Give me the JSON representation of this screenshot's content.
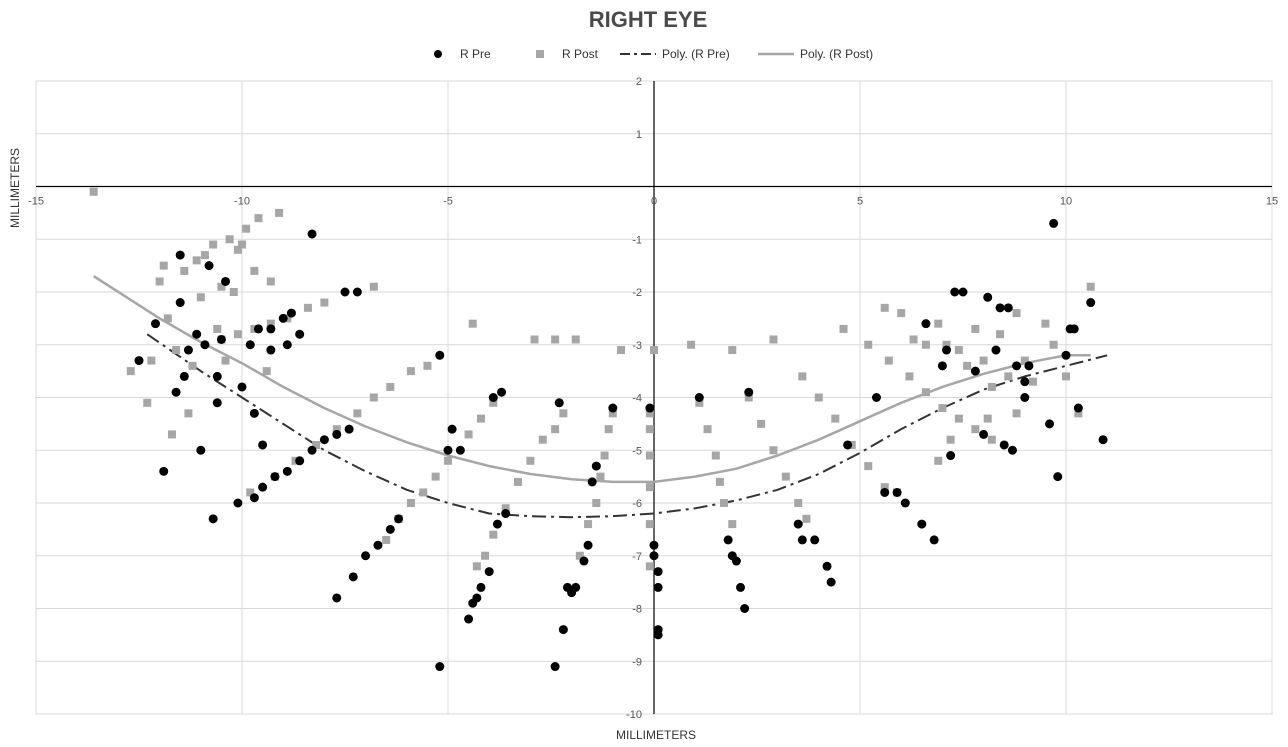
{
  "chart_data": {
    "type": "scatter",
    "title": "RIGHT EYE",
    "xlabel": "MILLIMETERS",
    "ylabel": "MILLIMETERS",
    "xlim": [
      -15,
      15
    ],
    "ylim": [
      -10,
      2
    ],
    "x_ticks": [
      -15,
      -10,
      -5,
      0,
      5,
      10,
      15
    ],
    "y_ticks": [
      2,
      1,
      -1,
      -2,
      -3,
      -4,
      -5,
      -6,
      -7,
      -8,
      -9,
      -10
    ],
    "grid": true,
    "legend_position": "top",
    "legend": [
      "R Pre",
      "R Post",
      "Poly. (R Pre)",
      "Poly. (R Post)"
    ],
    "colors": {
      "pre": "#000000",
      "post": "#a6a6a6",
      "poly_pre": "#333333",
      "poly_post": "#a6a6a6",
      "grid": "#d9d9d9",
      "axis": "#000000"
    },
    "series": [
      {
        "name": "R Pre",
        "marker": "circle",
        "points": [
          [
            -12.5,
            -3.3
          ],
          [
            -12.1,
            -2.6
          ],
          [
            -11.9,
            -5.4
          ],
          [
            -11.6,
            -3.9
          ],
          [
            -11.5,
            -2.2
          ],
          [
            -11.5,
            -1.3
          ],
          [
            -11.4,
            -3.6
          ],
          [
            -11.3,
            -3.1
          ],
          [
            -11.1,
            -2.8
          ],
          [
            -11.0,
            -5.0
          ],
          [
            -10.9,
            -3.0
          ],
          [
            -10.8,
            -1.5
          ],
          [
            -10.7,
            -6.3
          ],
          [
            -10.6,
            -4.1
          ],
          [
            -10.6,
            -3.6
          ],
          [
            -10.5,
            -2.9
          ],
          [
            -10.4,
            -1.8
          ],
          [
            -10.1,
            -6.0
          ],
          [
            -10.0,
            -3.8
          ],
          [
            -9.7,
            -4.3
          ],
          [
            -9.8,
            -3.0
          ],
          [
            -9.6,
            -2.7
          ],
          [
            -9.5,
            -4.9
          ],
          [
            -9.3,
            -3.1
          ],
          [
            -9.3,
            -2.7
          ],
          [
            -9.0,
            -2.5
          ],
          [
            -8.9,
            -3.0
          ],
          [
            -8.8,
            -2.4
          ],
          [
            -8.6,
            -2.8
          ],
          [
            -8.3,
            -0.9
          ],
          [
            -7.5,
            -2.0
          ],
          [
            -7.2,
            -2.0
          ],
          [
            -9.7,
            -5.9
          ],
          [
            -9.5,
            -5.7
          ],
          [
            -9.2,
            -5.5
          ],
          [
            -8.9,
            -5.4
          ],
          [
            -8.6,
            -5.2
          ],
          [
            -8.3,
            -5.0
          ],
          [
            -8.0,
            -4.8
          ],
          [
            -7.7,
            -4.7
          ],
          [
            -7.4,
            -4.6
          ],
          [
            -7.7,
            -7.8
          ],
          [
            -7.3,
            -7.4
          ],
          [
            -7.0,
            -7.0
          ],
          [
            -6.7,
            -6.8
          ],
          [
            -6.4,
            -6.5
          ],
          [
            -6.2,
            -6.3
          ],
          [
            -5.2,
            -3.2
          ],
          [
            -5.2,
            -9.1
          ],
          [
            -4.7,
            -5.0
          ],
          [
            -4.9,
            -4.6
          ],
          [
            -5.0,
            -5.0
          ],
          [
            -4.5,
            -8.2
          ],
          [
            -4.4,
            -7.9
          ],
          [
            -4.3,
            -7.8
          ],
          [
            -4.2,
            -7.6
          ],
          [
            -4.0,
            -7.3
          ],
          [
            -3.9,
            -4.0
          ],
          [
            -3.7,
            -3.9
          ],
          [
            -3.8,
            -6.4
          ],
          [
            -3.6,
            -6.2
          ],
          [
            -2.4,
            -9.1
          ],
          [
            -2.2,
            -8.4
          ],
          [
            -2.1,
            -7.6
          ],
          [
            -2.0,
            -7.7
          ],
          [
            -1.9,
            -7.6
          ],
          [
            -2.3,
            -4.1
          ],
          [
            -1.7,
            -7.1
          ],
          [
            -1.6,
            -6.8
          ],
          [
            -1.5,
            -5.6
          ],
          [
            -1.4,
            -5.3
          ],
          [
            -1.0,
            -4.2
          ],
          [
            -0.1,
            -4.2
          ],
          [
            0.0,
            -6.8
          ],
          [
            0.0,
            -7.0
          ],
          [
            0.1,
            -7.6
          ],
          [
            0.1,
            -7.3
          ],
          [
            0.1,
            -8.4
          ],
          [
            0.1,
            -8.5
          ],
          [
            1.1,
            -4.0
          ],
          [
            1.8,
            -6.7
          ],
          [
            1.9,
            -7.0
          ],
          [
            2.0,
            -7.1
          ],
          [
            2.1,
            -7.6
          ],
          [
            2.2,
            -8.0
          ],
          [
            2.3,
            -3.9
          ],
          [
            3.5,
            -6.4
          ],
          [
            3.6,
            -6.7
          ],
          [
            3.9,
            -6.7
          ],
          [
            4.2,
            -7.2
          ],
          [
            4.3,
            -7.5
          ],
          [
            4.7,
            -4.9
          ],
          [
            5.4,
            -4.0
          ],
          [
            5.6,
            -5.8
          ],
          [
            5.9,
            -5.8
          ],
          [
            6.1,
            -6.0
          ],
          [
            6.5,
            -6.4
          ],
          [
            6.8,
            -6.7
          ],
          [
            6.6,
            -2.6
          ],
          [
            7.0,
            -3.4
          ],
          [
            7.1,
            -3.1
          ],
          [
            7.3,
            -2.0
          ],
          [
            7.5,
            -2.0
          ],
          [
            7.8,
            -3.5
          ],
          [
            8.1,
            -2.1
          ],
          [
            8.3,
            -3.1
          ],
          [
            8.4,
            -2.3
          ],
          [
            8.6,
            -2.3
          ],
          [
            8.8,
            -3.4
          ],
          [
            9.0,
            -3.7
          ],
          [
            8.5,
            -4.9
          ],
          [
            8.7,
            -5.0
          ],
          [
            9.0,
            -4.0
          ],
          [
            9.1,
            -3.4
          ],
          [
            9.6,
            -4.5
          ],
          [
            9.7,
            -0.7
          ],
          [
            9.8,
            -5.5
          ],
          [
            10.0,
            -3.2
          ],
          [
            10.1,
            -2.7
          ],
          [
            10.2,
            -2.7
          ],
          [
            10.3,
            -4.2
          ],
          [
            10.6,
            -2.2
          ],
          [
            10.9,
            -4.8
          ],
          [
            7.2,
            -5.1
          ],
          [
            8.0,
            -4.7
          ]
        ]
      },
      {
        "name": "R Post",
        "marker": "square",
        "points": [
          [
            -13.6,
            -0.1
          ],
          [
            -12.7,
            -3.5
          ],
          [
            -12.3,
            -4.1
          ],
          [
            -12.2,
            -3.3
          ],
          [
            -12.0,
            -1.8
          ],
          [
            -11.9,
            -1.5
          ],
          [
            -11.8,
            -2.5
          ],
          [
            -11.7,
            -4.7
          ],
          [
            -11.6,
            -3.1
          ],
          [
            -11.4,
            -1.6
          ],
          [
            -11.3,
            -4.3
          ],
          [
            -11.2,
            -3.4
          ],
          [
            -11.1,
            -1.4
          ],
          [
            -11.0,
            -2.1
          ],
          [
            -10.9,
            -1.3
          ],
          [
            -10.7,
            -1.1
          ],
          [
            -10.6,
            -2.7
          ],
          [
            -10.5,
            -1.9
          ],
          [
            -10.4,
            -3.3
          ],
          [
            -10.3,
            -1.0
          ],
          [
            -10.2,
            -2.0
          ],
          [
            -10.1,
            -1.2
          ],
          [
            -10.0,
            -1.1
          ],
          [
            -9.9,
            -0.8
          ],
          [
            -9.7,
            -1.6
          ],
          [
            -9.6,
            -0.6
          ],
          [
            -9.4,
            -3.5
          ],
          [
            -9.3,
            -1.8
          ],
          [
            -9.1,
            -0.5
          ],
          [
            -10.5,
            -2.9
          ],
          [
            -10.1,
            -2.8
          ],
          [
            -9.7,
            -2.7
          ],
          [
            -9.3,
            -2.6
          ],
          [
            -8.9,
            -2.5
          ],
          [
            -8.4,
            -2.3
          ],
          [
            -8.0,
            -2.2
          ],
          [
            -6.8,
            -1.9
          ],
          [
            -9.8,
            -5.8
          ],
          [
            -9.2,
            -5.5
          ],
          [
            -8.7,
            -5.2
          ],
          [
            -8.2,
            -4.9
          ],
          [
            -7.7,
            -4.6
          ],
          [
            -7.2,
            -4.3
          ],
          [
            -6.8,
            -4.0
          ],
          [
            -6.4,
            -3.8
          ],
          [
            -5.9,
            -3.5
          ],
          [
            -5.5,
            -3.4
          ],
          [
            -6.5,
            -6.7
          ],
          [
            -6.2,
            -6.3
          ],
          [
            -5.9,
            -6.0
          ],
          [
            -5.6,
            -5.8
          ],
          [
            -5.3,
            -5.5
          ],
          [
            -5.0,
            -5.2
          ],
          [
            -4.5,
            -4.7
          ],
          [
            -4.2,
            -4.4
          ],
          [
            -3.9,
            -4.1
          ],
          [
            -4.3,
            -7.2
          ],
          [
            -4.1,
            -7.0
          ],
          [
            -3.9,
            -6.6
          ],
          [
            -3.6,
            -6.1
          ],
          [
            -3.3,
            -5.6
          ],
          [
            -3.0,
            -5.2
          ],
          [
            -2.7,
            -4.8
          ],
          [
            -2.4,
            -4.6
          ],
          [
            -2.2,
            -4.3
          ],
          [
            -4.4,
            -2.6
          ],
          [
            -2.9,
            -2.9
          ],
          [
            -2.4,
            -2.9
          ],
          [
            -1.9,
            -2.9
          ],
          [
            -1.8,
            -7.0
          ],
          [
            -1.6,
            -6.4
          ],
          [
            -1.4,
            -6.0
          ],
          [
            -1.3,
            -5.5
          ],
          [
            -1.2,
            -5.1
          ],
          [
            -1.1,
            -4.6
          ],
          [
            -1.0,
            -4.3
          ],
          [
            -0.8,
            -3.1
          ],
          [
            0.0,
            -3.1
          ],
          [
            -0.1,
            -7.2
          ],
          [
            -0.1,
            -6.4
          ],
          [
            -0.1,
            -5.7
          ],
          [
            -0.1,
            -5.1
          ],
          [
            -0.1,
            -4.6
          ],
          [
            -0.1,
            -4.3
          ],
          [
            0.9,
            -3.0
          ],
          [
            1.1,
            -4.1
          ],
          [
            1.3,
            -4.6
          ],
          [
            1.5,
            -5.1
          ],
          [
            1.6,
            -5.6
          ],
          [
            1.7,
            -6.0
          ],
          [
            1.9,
            -6.4
          ],
          [
            1.9,
            -3.1
          ],
          [
            2.3,
            -4.0
          ],
          [
            2.6,
            -4.5
          ],
          [
            2.9,
            -5.0
          ],
          [
            3.2,
            -5.5
          ],
          [
            3.5,
            -6.0
          ],
          [
            3.7,
            -6.3
          ],
          [
            2.9,
            -2.9
          ],
          [
            3.6,
            -3.6
          ],
          [
            4.0,
            -4.0
          ],
          [
            4.4,
            -4.4
          ],
          [
            4.8,
            -4.9
          ],
          [
            5.2,
            -5.3
          ],
          [
            5.6,
            -5.7
          ],
          [
            5.9,
            -5.8
          ],
          [
            4.6,
            -2.7
          ],
          [
            5.2,
            -3.0
          ],
          [
            5.7,
            -3.3
          ],
          [
            6.2,
            -3.6
          ],
          [
            6.6,
            -3.9
          ],
          [
            7.0,
            -4.2
          ],
          [
            7.4,
            -4.4
          ],
          [
            7.8,
            -4.6
          ],
          [
            8.2,
            -4.8
          ],
          [
            5.6,
            -2.3
          ],
          [
            6.0,
            -2.4
          ],
          [
            6.3,
            -2.9
          ],
          [
            6.6,
            -3.0
          ],
          [
            6.9,
            -2.6
          ],
          [
            7.1,
            -3.0
          ],
          [
            7.4,
            -3.1
          ],
          [
            7.6,
            -3.4
          ],
          [
            7.8,
            -2.7
          ],
          [
            8.0,
            -3.3
          ],
          [
            8.2,
            -3.8
          ],
          [
            8.4,
            -2.8
          ],
          [
            8.6,
            -3.6
          ],
          [
            8.8,
            -2.4
          ],
          [
            9.0,
            -3.3
          ],
          [
            9.2,
            -3.7
          ],
          [
            9.5,
            -2.6
          ],
          [
            9.7,
            -3.0
          ],
          [
            10.0,
            -3.6
          ],
          [
            10.3,
            -4.3
          ],
          [
            10.6,
            -1.9
          ],
          [
            6.9,
            -5.2
          ],
          [
            7.2,
            -4.8
          ],
          [
            8.1,
            -4.4
          ],
          [
            8.8,
            -4.3
          ]
        ]
      },
      {
        "name": "Poly. (R Pre)",
        "style": "dash-dot",
        "points": [
          [
            -12.3,
            -2.8
          ],
          [
            -11,
            -3.5
          ],
          [
            -10,
            -4.0
          ],
          [
            -9,
            -4.5
          ],
          [
            -8,
            -5.0
          ],
          [
            -7,
            -5.4
          ],
          [
            -6,
            -5.75
          ],
          [
            -5,
            -6.0
          ],
          [
            -4,
            -6.2
          ],
          [
            -3,
            -6.25
          ],
          [
            -2,
            -6.27
          ],
          [
            -1,
            -6.25
          ],
          [
            0,
            -6.2
          ],
          [
            1,
            -6.1
          ],
          [
            2,
            -5.95
          ],
          [
            3,
            -5.75
          ],
          [
            4,
            -5.45
          ],
          [
            5,
            -5.05
          ],
          [
            6,
            -4.6
          ],
          [
            7,
            -4.2
          ],
          [
            8,
            -3.85
          ],
          [
            9,
            -3.6
          ],
          [
            10,
            -3.4
          ],
          [
            11,
            -3.2
          ]
        ]
      },
      {
        "name": "Poly. (R Post)",
        "style": "solid",
        "points": [
          [
            -13.6,
            -1.7
          ],
          [
            -12,
            -2.5
          ],
          [
            -11,
            -2.95
          ],
          [
            -10,
            -3.35
          ],
          [
            -9,
            -3.8
          ],
          [
            -8,
            -4.2
          ],
          [
            -7,
            -4.55
          ],
          [
            -6,
            -4.85
          ],
          [
            -5,
            -5.1
          ],
          [
            -4,
            -5.3
          ],
          [
            -3,
            -5.45
          ],
          [
            -2,
            -5.55
          ],
          [
            -1,
            -5.6
          ],
          [
            0,
            -5.6
          ],
          [
            1,
            -5.5
          ],
          [
            2,
            -5.35
          ],
          [
            3,
            -5.1
          ],
          [
            4,
            -4.8
          ],
          [
            5,
            -4.45
          ],
          [
            6,
            -4.1
          ],
          [
            7,
            -3.8
          ],
          [
            8,
            -3.55
          ],
          [
            9,
            -3.35
          ],
          [
            10,
            -3.2
          ],
          [
            10.6,
            -3.2
          ]
        ]
      }
    ]
  }
}
